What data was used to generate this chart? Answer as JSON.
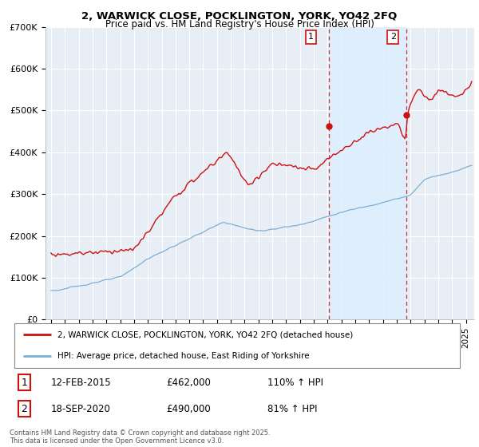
{
  "title1": "2, WARWICK CLOSE, POCKLINGTON, YORK, YO42 2FQ",
  "title2": "Price paid vs. HM Land Registry's House Price Index (HPI)",
  "ylim": [
    0,
    700000
  ],
  "yticks": [
    0,
    100000,
    200000,
    300000,
    400000,
    500000,
    600000,
    700000
  ],
  "ytick_labels": [
    "£0",
    "£100K",
    "£200K",
    "£300K",
    "£400K",
    "£500K",
    "£600K",
    "£700K"
  ],
  "xlim_start": 1994.6,
  "xlim_end": 2025.6,
  "sale1_x": 2015.1,
  "sale1_y": 462000,
  "sale1_label": "1",
  "sale1_date": "12-FEB-2015",
  "sale1_price": "£462,000",
  "sale1_hpi": "110% ↑ HPI",
  "sale2_x": 2020.72,
  "sale2_y": 490000,
  "sale2_label": "2",
  "sale2_date": "18-SEP-2020",
  "sale2_price": "£490,000",
  "sale2_hpi": "81% ↑ HPI",
  "hpi_color": "#7bafd4",
  "price_color": "#cc1111",
  "shade_color": "#ddeeff",
  "bg_color": "#ffffff",
  "plot_bg_color": "#e8eef5",
  "grid_color": "#ffffff",
  "legend_label_price": "2, WARWICK CLOSE, POCKLINGTON, YORK, YO42 2FQ (detached house)",
  "legend_label_hpi": "HPI: Average price, detached house, East Riding of Yorkshire",
  "footer": "Contains HM Land Registry data © Crown copyright and database right 2025.\nThis data is licensed under the Open Government Licence v3.0."
}
